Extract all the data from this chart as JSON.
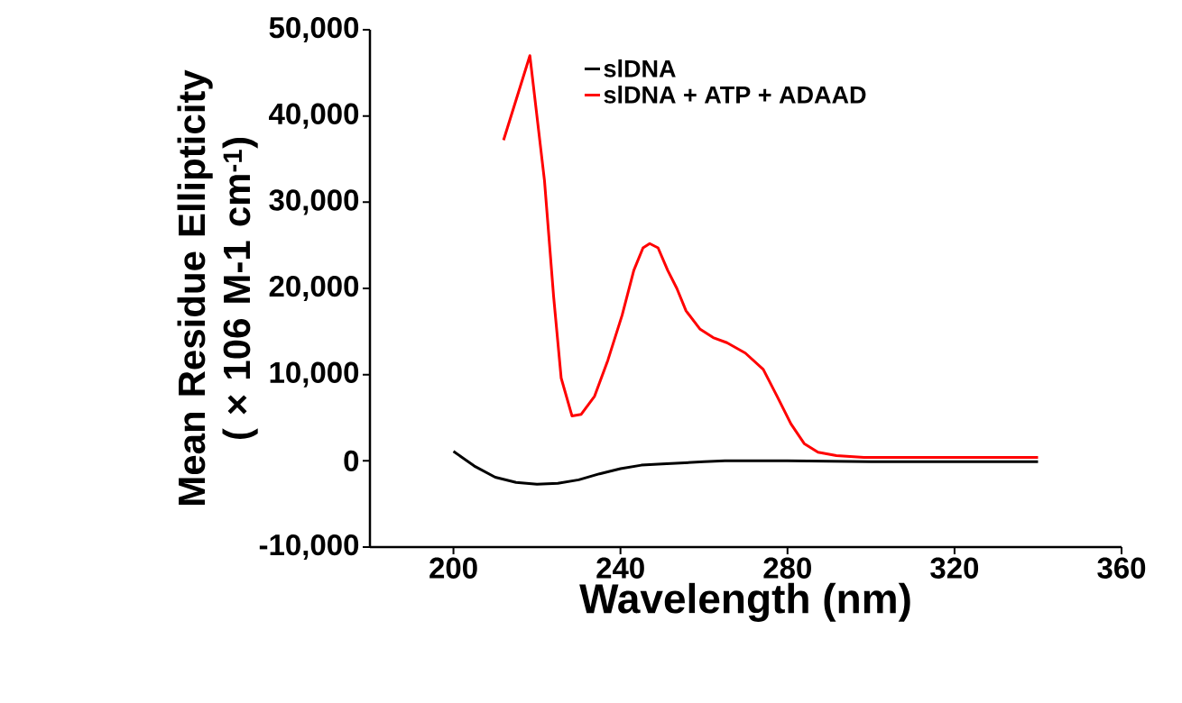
{
  "chart_data": {
    "type": "line",
    "xlabel": "Wavelength (nm)",
    "ylabel": "Mean Residue Ellipticity ( × 106  M-1 cm$^{-1}$)",
    "xlim": [
      180,
      360
    ],
    "xticks": [
      200,
      240,
      280,
      320,
      360
    ],
    "ylim": [
      -10000,
      50000
    ],
    "yticks": [
      {
        "value": -10000,
        "label": "-10,000"
      },
      {
        "value": 0,
        "label": "0"
      },
      {
        "value": 10000,
        "label": "10,000"
      },
      {
        "value": 20000,
        "label": "20,000"
      },
      {
        "value": 30000,
        "label": "30,000"
      },
      {
        "value": 40000,
        "label": "40,000"
      },
      {
        "value": 50000,
        "label": "50,000"
      }
    ],
    "legend": "top right",
    "grid": false,
    "marker": "none",
    "line_style": "solid",
    "series": [
      {
        "name": "slDNA",
        "color": "#000000",
        "x": [
          200,
          205,
          210,
          215,
          220,
          225,
          230,
          235,
          240,
          245,
          250,
          260,
          265,
          280,
          300,
          340
        ],
        "values": [
          1100,
          -600,
          -1900,
          -2500,
          -2700,
          -2600,
          -2200,
          -1500,
          -900,
          -500,
          -350,
          -100,
          0,
          0,
          -100,
          -100
        ]
      },
      {
        "name": "slDNA + ATP + ADAAD",
        "color": "#ff0000",
        "x": [
          212,
          218.3,
          221.8,
          224,
          225.8,
          228.4,
          230.6,
          233.8,
          237,
          240.4,
          243.2,
          245.4,
          247,
          249,
          251.3,
          253.5,
          255.7,
          259,
          262.2,
          265.5,
          269.9,
          274.2,
          277.5,
          280.8,
          284,
          287.3,
          291.7,
          298.3,
          307,
          340
        ],
        "values": [
          37200,
          47000,
          32500,
          19000,
          9600,
          5200,
          5400,
          7500,
          11700,
          16900,
          22100,
          24700,
          25200,
          24700,
          22100,
          20000,
          17400,
          15300,
          14300,
          13700,
          12500,
          10600,
          7500,
          4300,
          2000,
          1000,
          600,
          400,
          400,
          400
        ]
      }
    ]
  }
}
